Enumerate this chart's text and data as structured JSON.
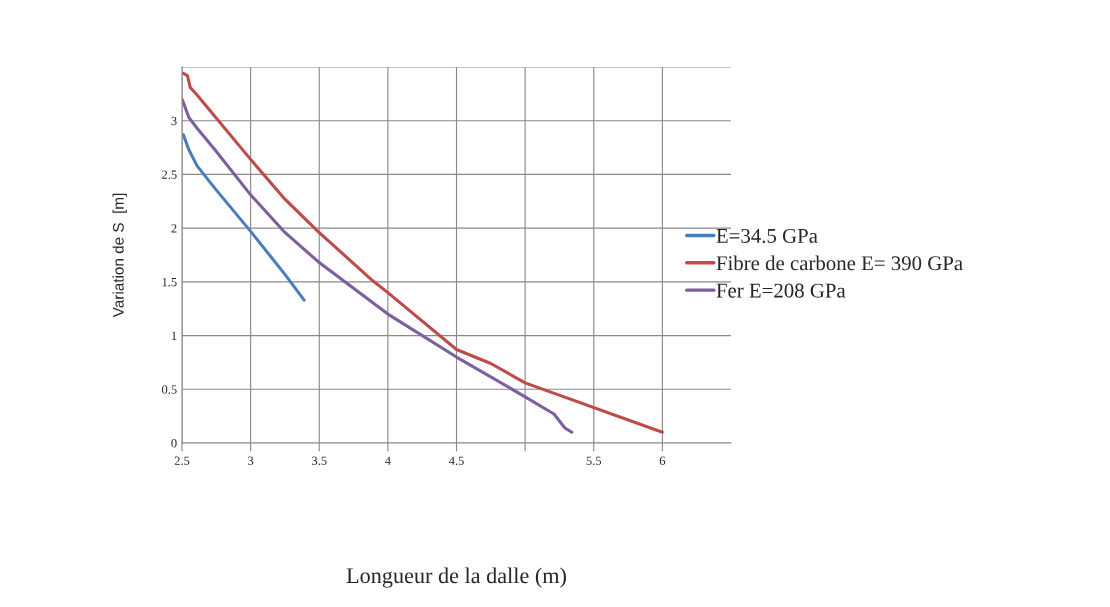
{
  "chart_data": {
    "type": "line",
    "xlabel": "Longueur de la dalle (m)",
    "ylabel": "Variation de S  [m]",
    "xlim": [
      2.5,
      6.5
    ],
    "ylim": [
      0,
      3.5
    ],
    "xticks": [
      2.5,
      3,
      3.5,
      4,
      4.5,
      {
        "value": 5,
        "label": null
      },
      5.5,
      6
    ],
    "yticks": [
      0,
      0.5,
      1,
      1.5,
      2,
      2.5,
      3,
      {
        "value": 3.5,
        "label": null
      }
    ],
    "grid": true,
    "legend": "right",
    "marker": "none",
    "line_style": "solid",
    "series": [
      {
        "name": "E=34.5 GPa",
        "color": "#4a7ebb",
        "x": [
          2.51,
          2.55,
          2.61,
          2.74,
          3.0,
          3.25,
          3.39
        ],
        "values": [
          2.87,
          2.73,
          2.58,
          2.37,
          1.97,
          1.57,
          1.33
        ]
      },
      {
        "name": "Fibre de carbone E= 390 GPa",
        "color": "#be4b48",
        "x": [
          2.51,
          2.54,
          2.56,
          2.61,
          2.74,
          3.0,
          3.25,
          3.49,
          3.89,
          4.0,
          4.5,
          4.75,
          5.0,
          6.0
        ],
        "values": [
          3.44,
          3.42,
          3.31,
          3.24,
          3.04,
          2.64,
          2.27,
          1.97,
          1.51,
          1.4,
          0.87,
          0.74,
          0.56,
          0.1
        ]
      },
      {
        "name": "Fer E=208 GPa",
        "color": "#7d5fa0",
        "x": [
          2.5,
          2.51,
          2.55,
          2.61,
          2.74,
          3.0,
          3.25,
          3.49,
          4.0,
          4.5,
          5.0,
          5.21,
          5.29,
          5.34
        ],
        "values": [
          3.2,
          3.17,
          3.03,
          2.93,
          2.73,
          2.31,
          1.96,
          1.69,
          1.2,
          0.8,
          0.43,
          0.27,
          0.14,
          0.1
        ]
      }
    ]
  }
}
